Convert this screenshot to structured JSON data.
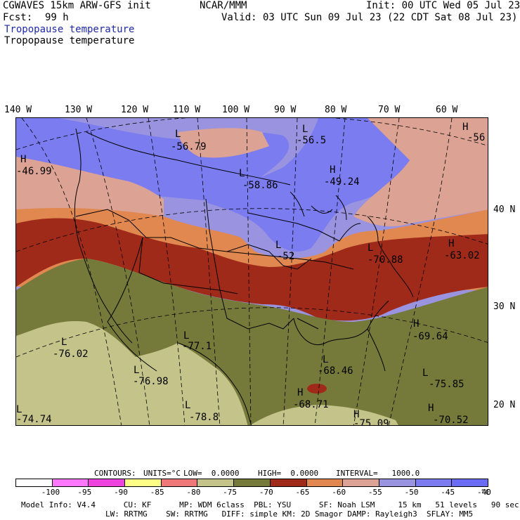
{
  "header": {
    "model": "CGWAVES 15km ARW-GFS init",
    "org": "NCAR/MMM",
    "init": "Init: 00 UTC Wed 05 Jul 23",
    "fcst_label": "Fcst:",
    "fcst_value": "99 h",
    "valid": "Valid: 03 UTC Sun 09 Jul 23 (22 CDT Sat 08 Jul 23)",
    "field_title_1": "Tropopause temperature",
    "field_title_2": "Tropopause temperature"
  },
  "longitude_labels": [
    "140 W",
    "130 W",
    "120 W",
    "110 W",
    "100 W",
    "90 W",
    "80 W",
    "70 W",
    "60 W"
  ],
  "latitude_labels": [
    "40 N",
    "30 N",
    "20 N"
  ],
  "map_annotations": [
    {
      "mark": "H",
      "value": "-46.99"
    },
    {
      "mark": "L",
      "value": "-56.79"
    },
    {
      "mark": "L",
      "value": "-56.5"
    },
    {
      "mark": "H",
      "value": "-56"
    },
    {
      "mark": "L",
      "value": "-58.86"
    },
    {
      "mark": "H",
      "value": "-49.24"
    },
    {
      "mark": "L",
      "value": "-52"
    },
    {
      "mark": "L",
      "value": "-70.88"
    },
    {
      "mark": "H",
      "value": "-63.02"
    },
    {
      "mark": "H",
      "value": "-69.64"
    },
    {
      "mark": "L",
      "value": "-76.02"
    },
    {
      "mark": "L",
      "value": "-77.1"
    },
    {
      "mark": "L",
      "value": "-76.98"
    },
    {
      "mark": "L",
      "value": "-68.46"
    },
    {
      "mark": "L",
      "value": "-75.85"
    },
    {
      "mark": "H",
      "value": "-68.71"
    },
    {
      "mark": "L",
      "value": "-78.8"
    },
    {
      "mark": "L",
      "value": "-74.74"
    },
    {
      "mark": "H",
      "value": "-75.09"
    },
    {
      "mark": "H",
      "value": "-70.52"
    }
  ],
  "contour_info": {
    "contours": "CONTOURS:",
    "units": "UNITS=°C",
    "low": "LOW=  0.0000",
    "high": "HIGH=  0.0000",
    "interval": "INTERVAL=   1000.0"
  },
  "colorbar": {
    "colors": [
      "#ffffff",
      "#ff77ff",
      "#ee44dd",
      "#ffff88",
      "#ee7777",
      "#c3c38a",
      "#757a3a",
      "#a02a1a",
      "#e08850",
      "#dca294",
      "#9a94e0",
      "#7a7cf0",
      "#6a6cf4"
    ],
    "labels": [
      "-100",
      "-95",
      "-90",
      "-85",
      "-80",
      "-75",
      "-70",
      "-65",
      "-60",
      "-55",
      "-50",
      "-45",
      "-40"
    ],
    "unit": "°C"
  },
  "footer": {
    "line1": "Model Info: V4.4      CU: KF      MP: WDM 6class  PBL: YSU      SF: Noah LSM     15 km   51 levels   90 sec",
    "line2": "LW: RRTMG    SW: RRTMG   DIFF: simple KM: 2D Smagor DAMP: Rayleigh3  SFLAY: MM5"
  }
}
